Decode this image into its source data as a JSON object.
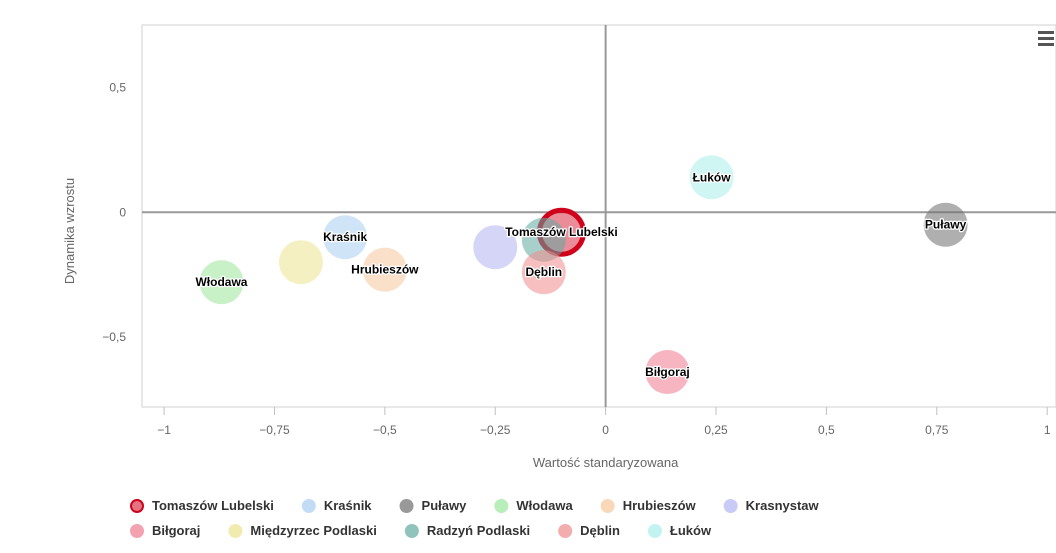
{
  "chart_data": {
    "type": "scatter",
    "title": "",
    "xlabel": "Wartość standaryzowana",
    "ylabel": "Dynamika wzrostu",
    "xlim": [
      -1.05,
      1.02
    ],
    "ylim": [
      -0.78,
      0.75
    ],
    "x_ticks": [
      {
        "value": -1,
        "label": "−1"
      },
      {
        "value": -0.75,
        "label": "−0,75"
      },
      {
        "value": -0.5,
        "label": "−0,5"
      },
      {
        "value": -0.25,
        "label": "−0,25"
      },
      {
        "value": 0,
        "label": "0"
      },
      {
        "value": 0.25,
        "label": "0,25"
      },
      {
        "value": 0.5,
        "label": "0,5"
      },
      {
        "value": 0.75,
        "label": "0,75"
      },
      {
        "value": 1,
        "label": "1"
      }
    ],
    "y_ticks": [
      {
        "value": 0.5,
        "label": "0,5"
      },
      {
        "value": 0,
        "label": "0"
      },
      {
        "value": -0.5,
        "label": "−0,5"
      }
    ],
    "grid": false,
    "legend_position": "bottom",
    "series": [
      {
        "name": "Tomaszów Lubelski",
        "color": "#d0021b",
        "x": -0.1,
        "y": -0.08,
        "label": "Tomaszów Lubelski",
        "highlighted": true
      },
      {
        "name": "Kraśnik",
        "color": "#a9cdf2",
        "x": -0.59,
        "y": -0.1,
        "label": "Kraśnik"
      },
      {
        "name": "Puławy",
        "color": "#6e6e6e",
        "x": 0.77,
        "y": -0.05,
        "label": "Puławy"
      },
      {
        "name": "Włodawa",
        "color": "#9be69b",
        "x": -0.87,
        "y": -0.28,
        "label": "Włodawa"
      },
      {
        "name": "Hrubieszów",
        "color": "#f7c79d",
        "x": -0.5,
        "y": -0.23,
        "label": "Hrubieszów"
      },
      {
        "name": "Krasnystaw",
        "color": "#b3b3f2",
        "x": -0.25,
        "y": -0.14,
        "label": ""
      },
      {
        "name": "Biłgoraj",
        "color": "#f0798f",
        "x": 0.14,
        "y": -0.64,
        "label": "Biłgoraj"
      },
      {
        "name": "Międzyrzec Podlaski",
        "color": "#ece38f",
        "x": -0.69,
        "y": -0.2,
        "label": ""
      },
      {
        "name": "Radzyń Podlaski",
        "color": "#5fa9a0",
        "x": -0.14,
        "y": -0.11,
        "label": ""
      },
      {
        "name": "Dęblin",
        "color": "#f08a8a",
        "x": -0.14,
        "y": -0.24,
        "label": "Dęblin"
      },
      {
        "name": "Łuków",
        "color": "#a8eeea",
        "x": 0.24,
        "y": 0.14,
        "label": "Łuków"
      }
    ]
  }
}
